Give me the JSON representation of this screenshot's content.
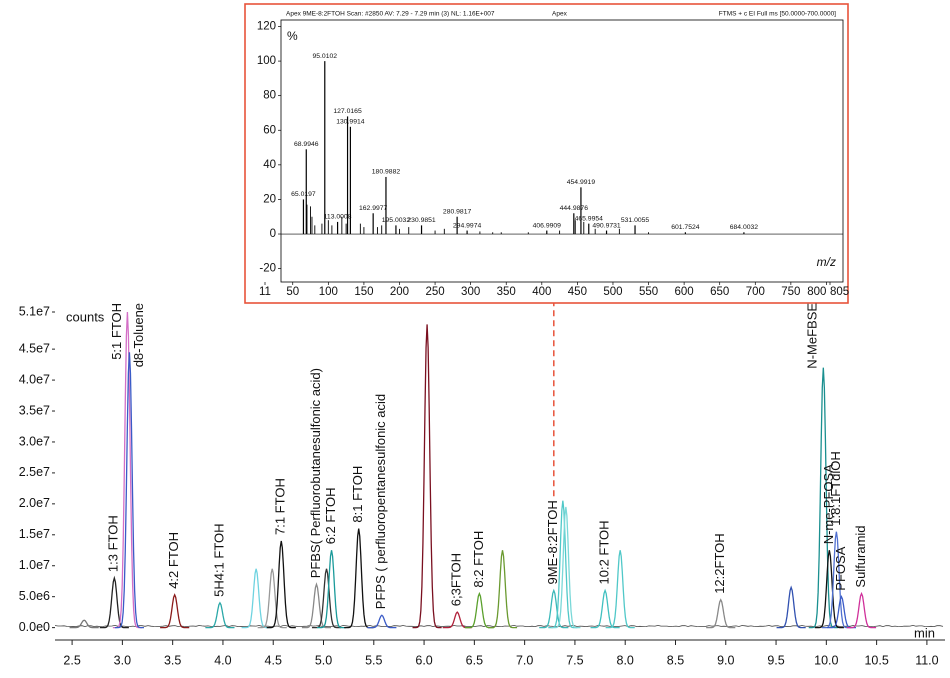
{
  "chart_data": [
    {
      "type": "line",
      "x_label": "min",
      "y_label": "counts",
      "xlim": [
        2.33,
        11.18
      ],
      "ylim": [
        -2000000,
        51000000
      ],
      "xticks": [
        2.5,
        {
          "value": 3,
          "label": "3.0"
        },
        3.5,
        {
          "value": 4,
          "label": "4.0"
        },
        4.5,
        {
          "value": 5,
          "label": "5.0"
        },
        5.5,
        {
          "value": 6,
          "label": "6.0"
        },
        6.5,
        {
          "value": 7,
          "label": "7.0"
        },
        7.5,
        {
          "value": 8,
          "label": "8.0"
        },
        8.5,
        {
          "value": 9,
          "label": "9.0"
        },
        9.5,
        {
          "value": 10,
          "label": "10.0"
        },
        10.5,
        {
          "value": 11,
          "label": "11.0"
        }
      ],
      "yticks": [
        {
          "value": 0,
          "label": "0.0e0"
        },
        {
          "value": 5000000,
          "label": "5.0e6"
        },
        {
          "value": 10000000,
          "label": "1.0e7"
        },
        {
          "value": 15000000,
          "label": "1.5e7"
        },
        {
          "value": 20000000,
          "label": "2.0e7"
        },
        {
          "value": 25000000,
          "label": "2.5e7"
        },
        {
          "value": 30000000,
          "label": "3.0e7"
        },
        {
          "value": 35000000,
          "label": "3.5e7"
        },
        {
          "value": 40000000,
          "label": "4.0e7"
        },
        {
          "value": 45000000,
          "label": "4.5e7"
        },
        {
          "value": 51000000,
          "label": "5.1e7"
        }
      ],
      "x": [
        2.62,
        2.92,
        3.05,
        3.07,
        3.52,
        3.97,
        4.33,
        4.49,
        4.58,
        4.93,
        5.03,
        5.08,
        5.35,
        5.58,
        6.03,
        6.33,
        6.55,
        6.78,
        7.29,
        7.38,
        7.41,
        7.8,
        7.95,
        8.95,
        9.65,
        9.97,
        10.03,
        10.1,
        10.15,
        10.35
      ],
      "values": [
        1200000,
        8000000,
        51000000,
        44500000,
        5300000,
        4000000,
        9500000,
        9500000,
        14000000,
        7000000,
        9500000,
        12500000,
        16000000,
        2000000,
        49000000,
        2500000,
        5500000,
        12500000,
        6000000,
        20500000,
        19500000,
        6000000,
        12500000,
        4500000,
        6500000,
        42000000,
        12500000,
        15500000,
        5000000,
        5500000
      ],
      "colors": [
        "#777777",
        "#222222",
        "#d36fc6",
        "#3a5bc7",
        "#8b1a1a",
        "#2aa8a8",
        "#6fd3e0",
        "#999999",
        "#111111",
        "#888888",
        "#333333",
        "#1a9a9a",
        "#111111",
        "#3a5bc7",
        "#7a1020",
        "#b0203a",
        "#5aa02c",
        "#6a9a30",
        "#3ab8b8",
        "#50c8c8",
        "#7ad8d8",
        "#40c0c0",
        "#50c8c8",
        "#888888",
        "#3050b0",
        "#1a9090",
        "#111111",
        "#5070d0",
        "#3a5bc7",
        "#d0309a"
      ],
      "labels": [
        null,
        "1:3 FTOH",
        "5:1 FTOH",
        "d8-Toluene",
        "4:2 FTOH",
        "5H4:1 FTOH",
        null,
        null,
        "7:1 FTOH",
        "PFBS( Perfluorobutanesulfonic acid)",
        null,
        "6:2 FTOH",
        "8:1 FTOH",
        "PFPS ( perfluoropentanesulfonic acid",
        null,
        "6;3FTOH",
        "8:2 FTOH",
        null,
        "9ME-8:2FTOH",
        null,
        null,
        "10:2 FTOH",
        null,
        "12:2FTOH",
        null,
        "N-MeFBSE",
        "N-me-PFOSA",
        "1:8:1FTdiOH",
        "PFOSA",
        "Sulfuramid"
      ],
      "highlight_index": 18,
      "highlight_color": "#e8533a"
    },
    {
      "type": "stem",
      "scan_info": "Apex 9ME-8:2FTOH Scan: #2850  AV: 7.29 - 7.29 min (3)  NL: 1.16E+007",
      "apex_label": "Apex",
      "scan_filter": "FTMS + c EI Full ms [50.0000-700.0000]",
      "x_label": "m/z",
      "y_label": "%",
      "xlim": [
        11,
        805
      ],
      "ylim": [
        -20,
        120
      ],
      "xticks": [
        11,
        50,
        100,
        150,
        200,
        250,
        300,
        350,
        400,
        450,
        500,
        550,
        600,
        650,
        700,
        750,
        800,
        805
      ],
      "yticks": [
        -20,
        0,
        20,
        40,
        60,
        80,
        100,
        120
      ],
      "x": [
        65.0197,
        68.9946,
        95.0102,
        113.0008,
        127.0165,
        130.9914,
        162.9977,
        180.9882,
        195.0032,
        230.9851,
        280.9817,
        294.9974,
        406.9909,
        444.9876,
        454.9919,
        465.9954,
        490.9731,
        531.0055,
        601.7524,
        684.0032
      ],
      "values": [
        20,
        49,
        100,
        7,
        68,
        62,
        12,
        33,
        5,
        5,
        10,
        2,
        2,
        12,
        27,
        6,
        2,
        5,
        1,
        1
      ],
      "unlabeled_x": [
        70,
        75,
        77,
        81,
        91,
        100,
        105,
        119,
        125,
        145,
        150,
        169,
        175,
        200,
        213,
        250,
        263,
        313,
        331,
        343,
        381,
        425,
        447,
        459,
        475,
        509,
        550
      ],
      "unlabeled_values": [
        17,
        16,
        10,
        5,
        6,
        8,
        5,
        10,
        6,
        6,
        4,
        4,
        5,
        3,
        4,
        2,
        3,
        1.5,
        1,
        1,
        1,
        2,
        8,
        7,
        3,
        3,
        1
      ],
      "color": "#000000"
    }
  ]
}
